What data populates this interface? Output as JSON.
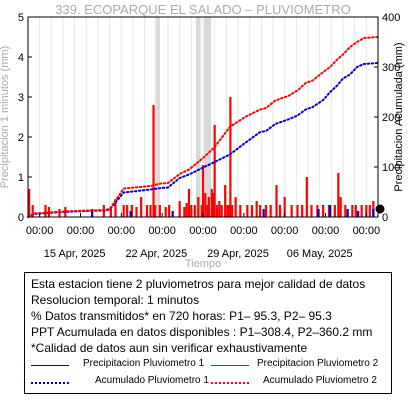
{
  "chart_data": {
    "type": "bar",
    "title": "339. ECOPARQUE EL SALADO – PLUVIOMETRO",
    "xlabel": "Tiempo",
    "ylabel_left": "Precipitacion 1 minutos (mm)",
    "ylabel_right": "Precipitacion Acumulada (mm)",
    "ylim_left": [
      0,
      5
    ],
    "ylim_right": [
      0,
      400
    ],
    "yticks_left": [
      "0",
      "1",
      "2",
      "3",
      "4",
      "5"
    ],
    "yticks_right": [
      "0",
      "100",
      "200",
      "300",
      "400"
    ],
    "xlim_days": [
      0,
      30
    ],
    "x_time_labels": [
      "00:00",
      "00:00",
      "00:00",
      "00:00",
      "00:00",
      "00:00",
      "00:00",
      "00:00",
      "00:00"
    ],
    "x_date_labels": [
      {
        "day": 4,
        "label": "15 Apr, 2025"
      },
      {
        "day": 11,
        "label": "22 Apr, 2025"
      },
      {
        "day": 18,
        "label": "29 Apr, 2025"
      },
      {
        "day": 25,
        "label": "06 May, 2025"
      }
    ],
    "gray_bands": [
      {
        "from": 10.9,
        "to": 11.3
      },
      {
        "from": 14.4,
        "to": 14.8
      },
      {
        "from": 15.1,
        "to": 15.7
      }
    ],
    "series": [
      {
        "name": "Precipitacion Pluviometro 2",
        "kind": "bars",
        "color": "#ff0000",
        "points": [
          [
            0.1,
            0.7
          ],
          [
            0.4,
            0.3
          ],
          [
            1.5,
            0.3
          ],
          [
            1.8,
            0.25
          ],
          [
            2.7,
            0.2
          ],
          [
            3.2,
            0.25
          ],
          [
            6.5,
            0.3
          ],
          [
            7.1,
            0.2
          ],
          [
            7.5,
            0.45
          ],
          [
            8.2,
            0.3
          ],
          [
            8.5,
            0.3
          ],
          [
            8.9,
            0.3
          ],
          [
            9.3,
            0.25
          ],
          [
            9.7,
            0.5
          ],
          [
            10.2,
            0.3
          ],
          [
            10.5,
            0.3
          ],
          [
            10.76,
            2.8
          ],
          [
            10.9,
            0.3
          ],
          [
            11.3,
            0.3
          ],
          [
            11.8,
            0.25
          ],
          [
            12.1,
            0.3
          ],
          [
            13.0,
            0.4
          ],
          [
            13.4,
            0.25
          ],
          [
            13.6,
            0.35
          ],
          [
            13.8,
            0.7
          ],
          [
            14.0,
            0.3
          ],
          [
            14.3,
            0.3
          ],
          [
            14.6,
            0.5
          ],
          [
            14.9,
            0.3
          ],
          [
            15.0,
            1.3
          ],
          [
            15.2,
            0.6
          ],
          [
            15.4,
            0.3
          ],
          [
            15.5,
            0.5
          ],
          [
            15.75,
            0.7
          ],
          [
            15.9,
            0.6
          ],
          [
            16.0,
            2.3
          ],
          [
            16.2,
            0.3
          ],
          [
            16.4,
            0.4
          ],
          [
            16.6,
            0.3
          ],
          [
            16.9,
            0.8
          ],
          [
            17.1,
            0.3
          ],
          [
            17.25,
            0.3
          ],
          [
            17.35,
            3.0
          ],
          [
            17.5,
            0.3
          ],
          [
            17.8,
            0.5
          ],
          [
            18.2,
            0.3
          ],
          [
            18.8,
            0.3
          ],
          [
            19.2,
            0.3
          ],
          [
            19.6,
            0.4
          ],
          [
            19.9,
            0.3
          ],
          [
            20.4,
            0.3
          ],
          [
            20.8,
            0.3
          ],
          [
            21.3,
            0.8
          ],
          [
            21.6,
            0.3
          ],
          [
            22.0,
            0.5
          ],
          [
            22.6,
            0.3
          ],
          [
            23.1,
            0.3
          ],
          [
            23.5,
            0.3
          ],
          [
            23.9,
            1.0
          ],
          [
            24.3,
            0.3
          ],
          [
            24.8,
            0.3
          ],
          [
            25.3,
            0.3
          ],
          [
            25.8,
            0.3
          ],
          [
            26.3,
            0.3
          ],
          [
            26.6,
            1.1
          ],
          [
            26.8,
            0.5
          ],
          [
            27.2,
            0.3
          ],
          [
            27.8,
            0.3
          ],
          [
            28.1,
            0.3
          ],
          [
            28.6,
            0.3
          ],
          [
            29.0,
            0.3
          ],
          [
            29.3,
            0.3
          ],
          [
            29.6,
            0.4
          ]
        ]
      },
      {
        "name": "Precipitacion Pluviometro 1",
        "kind": "bars",
        "color": "#0000cc",
        "points": [
          [
            5.5,
            0.2
          ],
          [
            8.8,
            0.15
          ],
          [
            12.4,
            0.15
          ],
          [
            20.2,
            0.2
          ],
          [
            24.9,
            0.2
          ],
          [
            25.9,
            0.3
          ],
          [
            27.4,
            0.2
          ],
          [
            28.3,
            0.15
          ],
          [
            29.6,
            0.2
          ]
        ]
      },
      {
        "name": "Acumulado Pluviometro 1",
        "kind": "dotted-line",
        "color": "#0000cc",
        "points": [
          [
            0,
            0
          ],
          [
            0.5,
            6
          ],
          [
            1.7,
            8
          ],
          [
            3.0,
            10
          ],
          [
            5.0,
            12
          ],
          [
            6.6,
            13
          ],
          [
            7.0,
            15
          ],
          [
            8.2,
            49
          ],
          [
            10.5,
            55
          ],
          [
            11.4,
            58
          ],
          [
            12.0,
            59
          ],
          [
            13.0,
            78
          ],
          [
            13.8,
            85
          ],
          [
            15.1,
            100
          ],
          [
            16.0,
            110
          ],
          [
            17.3,
            125
          ],
          [
            18.6,
            148
          ],
          [
            19.9,
            170
          ],
          [
            20.4,
            172
          ],
          [
            21.2,
            186
          ],
          [
            22.3,
            195
          ],
          [
            23.1,
            203
          ],
          [
            23.8,
            215
          ],
          [
            24.4,
            220
          ],
          [
            25.3,
            234
          ],
          [
            25.9,
            250
          ],
          [
            26.5,
            263
          ],
          [
            27.0,
            277
          ],
          [
            27.6,
            285
          ],
          [
            28.2,
            300
          ],
          [
            28.8,
            306
          ],
          [
            30.0,
            308
          ]
        ]
      },
      {
        "name": "Acumulado Pluviometro 2",
        "kind": "dotted-line",
        "color": "#ff0000",
        "points": [
          [
            0,
            0
          ],
          [
            0.5,
            7
          ],
          [
            1.7,
            9
          ],
          [
            3.0,
            11
          ],
          [
            5.0,
            13
          ],
          [
            6.6,
            14
          ],
          [
            7.0,
            16
          ],
          [
            8.2,
            57
          ],
          [
            10.5,
            62
          ],
          [
            11.4,
            67
          ],
          [
            12.0,
            68
          ],
          [
            13.0,
            86
          ],
          [
            13.8,
            95
          ],
          [
            15.1,
            120
          ],
          [
            16.0,
            140
          ],
          [
            17.3,
            180
          ],
          [
            18.6,
            200
          ],
          [
            19.9,
            215
          ],
          [
            20.4,
            218
          ],
          [
            21.2,
            233
          ],
          [
            22.3,
            242
          ],
          [
            23.1,
            253
          ],
          [
            23.8,
            268
          ],
          [
            24.4,
            273
          ],
          [
            25.3,
            290
          ],
          [
            25.9,
            300
          ],
          [
            26.5,
            315
          ],
          [
            27.0,
            325
          ],
          [
            27.6,
            340
          ],
          [
            28.2,
            350
          ],
          [
            28.8,
            358
          ],
          [
            30.0,
            360
          ]
        ]
      }
    ],
    "marker": {
      "shape": "black-dot",
      "day": 30,
      "value": 0
    }
  },
  "info": {
    "line1": "Esta estacion tiene 2 pluviometros para mejor calidad de datos",
    "line2": "Resolucion temporal: 1 minutos",
    "line3": "% Datos transmitidos* en 720 horas: P1– 95.3, P2– 95.3",
    "line4": "PPT Acumulada en datos disponibles : P1–308.4, P2–360.2 mm",
    "line5": "*Calidad de datos aun sin verificar exhaustivamente"
  },
  "legend": {
    "p1_precip": "Precipitacion Pluviometro 1",
    "p2_precip": "Precipitacion Pluviometro 2",
    "p1_acum": "Acumulado Pluviometro 1",
    "p2_acum": "Acumulado Pluviometro 2",
    "color_p1": "#0000cc",
    "color_p2": "#ff0000"
  }
}
